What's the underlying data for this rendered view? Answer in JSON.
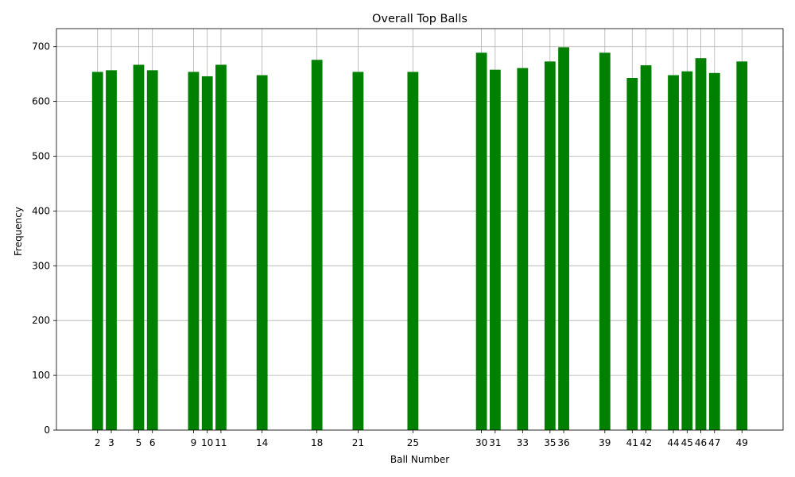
{
  "chart_data": {
    "type": "bar",
    "title": "Overall Top Balls",
    "xlabel": "Ball Number",
    "ylabel": "Frequency",
    "ylim": [
      0,
      733
    ],
    "xlim": [
      -1,
      52
    ],
    "grid": true,
    "bar_color": "#008000",
    "grid_color": "#b0b0b0",
    "yticks": [
      0,
      100,
      200,
      300,
      400,
      500,
      600,
      700
    ],
    "categories": [
      2,
      3,
      5,
      6,
      9,
      10,
      11,
      14,
      18,
      21,
      25,
      30,
      31,
      33,
      35,
      36,
      39,
      41,
      42,
      44,
      45,
      46,
      47,
      49
    ],
    "values": [
      654,
      657,
      667,
      657,
      654,
      646,
      667,
      648,
      676,
      654,
      654,
      689,
      658,
      661,
      673,
      699,
      689,
      643,
      666,
      648,
      655,
      679,
      652,
      673
    ]
  }
}
